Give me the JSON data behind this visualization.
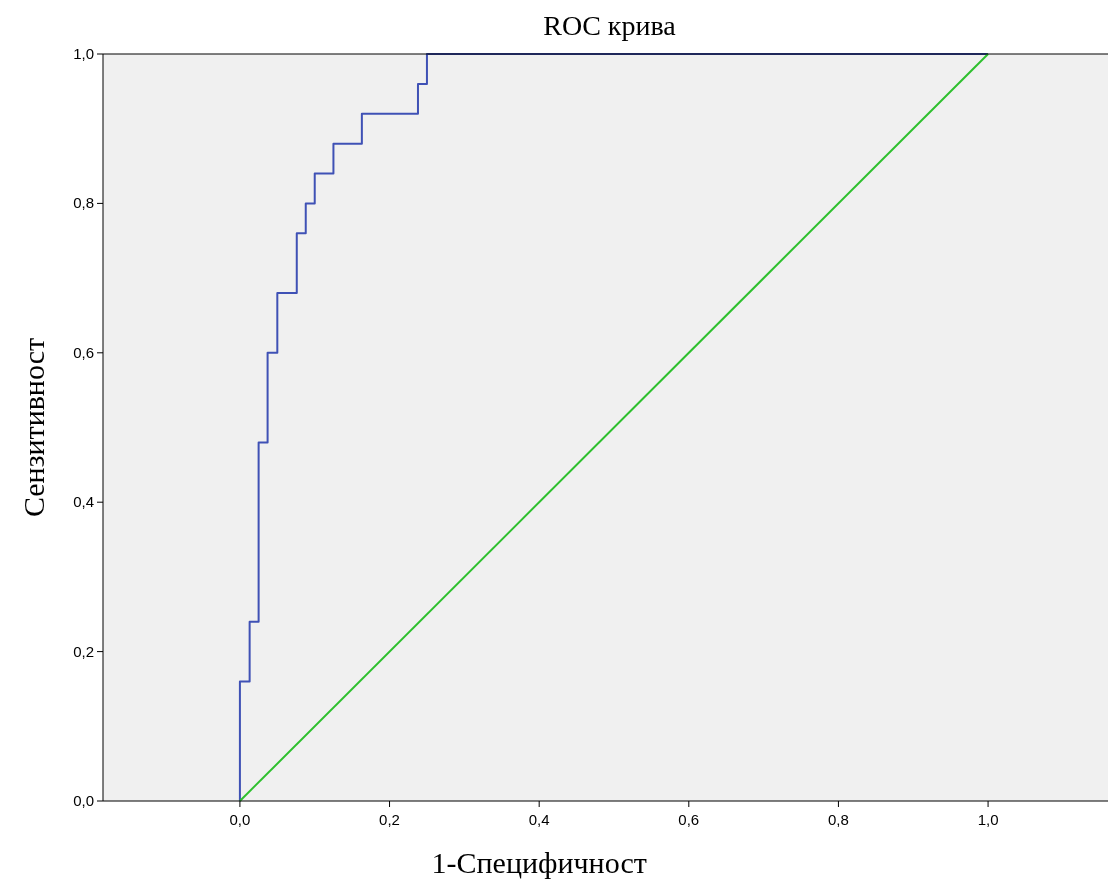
{
  "chart_data": {
    "type": "step",
    "title": "ROC крива",
    "xlabel": "1-Специфичност",
    "ylabel": "Сензитивност",
    "xlim": [
      -0.183,
      1.171
    ],
    "ylim": [
      0,
      1
    ],
    "xticks": [
      {
        "value": 0,
        "label": "0,0"
      },
      {
        "value": 0.2,
        "label": "0,2"
      },
      {
        "value": 0.4,
        "label": "0,4"
      },
      {
        "value": 0.6,
        "label": "0,6"
      },
      {
        "value": 0.8,
        "label": "0,8"
      },
      {
        "value": 1,
        "label": "1,0"
      }
    ],
    "yticks": [
      {
        "value": 0,
        "label": "0,0"
      },
      {
        "value": 0.2,
        "label": "0,2"
      },
      {
        "value": 0.4,
        "label": "0,4"
      },
      {
        "value": 0.6,
        "label": "0,6"
      },
      {
        "value": 0.8,
        "label": "0,8"
      },
      {
        "value": 1,
        "label": "1,0"
      }
    ],
    "series": [
      {
        "color": "#3f51b5",
        "x": [
          0,
          0,
          0.013,
          0.025,
          0.037,
          0.05,
          0.076,
          0.088,
          0.1,
          0.125,
          0.163,
          0.238,
          0.25,
          1
        ],
        "values": [
          0,
          0.16,
          0.24,
          0.48,
          0.6,
          0.68,
          0.76,
          0.8,
          0.84,
          0.88,
          0.92,
          0.96,
          1,
          1
        ]
      },
      {
        "type": "line",
        "color": "#2ec02e",
        "x": [
          0,
          1
        ],
        "values": [
          0,
          1
        ]
      }
    ],
    "grid": false
  }
}
